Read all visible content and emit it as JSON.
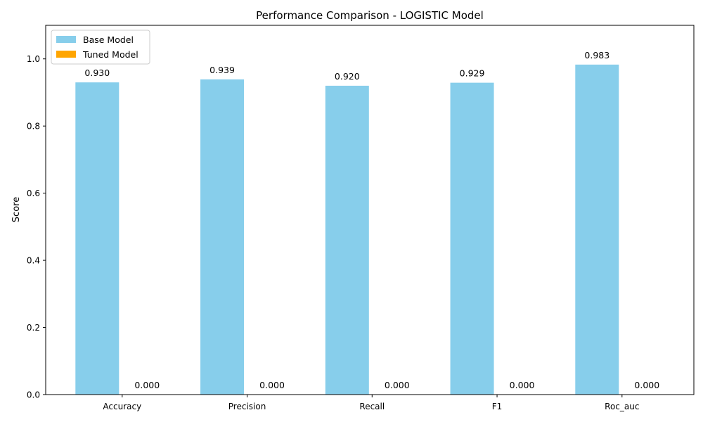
{
  "chart_data": {
    "type": "bar",
    "title": "Performance Comparison - LOGISTIC Model",
    "xlabel": "",
    "ylabel": "Score",
    "ylim": [
      0,
      1.1
    ],
    "yticks": [
      "0.0",
      "0.2",
      "0.4",
      "0.6",
      "0.8",
      "1.0"
    ],
    "ytick_values": [
      0,
      0.2,
      0.4,
      0.6,
      0.8,
      1.0
    ],
    "categories": [
      "Accuracy",
      "Precision",
      "Recall",
      "F1",
      "Roc_auc"
    ],
    "series": [
      {
        "name": "Base Model",
        "color": "#87ceeb",
        "values": [
          0.93,
          0.939,
          0.92,
          0.929,
          0.983
        ],
        "labels": [
          "0.930",
          "0.939",
          "0.920",
          "0.929",
          "0.983"
        ]
      },
      {
        "name": "Tuned Model",
        "color": "#ffa500",
        "values": [
          0.0,
          0.0,
          0.0,
          0.0,
          0.0
        ],
        "labels": [
          "0.000",
          "0.000",
          "0.000",
          "0.000",
          "0.000"
        ]
      }
    ],
    "grid": false,
    "legend_position": "top-left"
  }
}
